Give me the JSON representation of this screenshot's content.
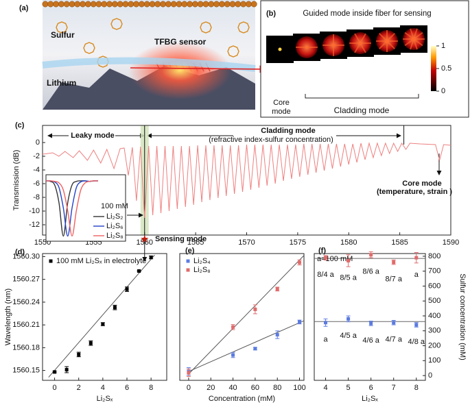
{
  "panel_a": {
    "label": "(a)",
    "texts": [
      "Sulfur",
      "TFBG sensor",
      "Lithium"
    ]
  },
  "panel_b": {
    "label": "(b)",
    "title": "Guided mode inside fiber for sensing",
    "colorbar_ticks": [
      1,
      0.5,
      0
    ],
    "core_label": [
      "Core",
      "mode"
    ],
    "cladding_label": "Cladding  mode"
  },
  "chart_data": [
    {
      "type": "line",
      "panel_label": "(c)",
      "ylabel": "Transmission (dB)",
      "xlim": [
        1550,
        1590
      ],
      "ylim": [
        -13.5,
        2.5
      ],
      "xticks": [
        1550,
        1555,
        1560,
        1565,
        1570,
        1575,
        1580,
        1585,
        1590
      ],
      "yticks": [
        0,
        -2,
        -4,
        -6,
        -8,
        -10,
        -12
      ],
      "highlight_band": [
        1559.6,
        1560.4
      ],
      "band_color": "#d5e4bd",
      "vlines": [
        1560,
        1585.4
      ],
      "annotations": [
        "Leaky mode",
        "Cladding mode",
        "(refractive index-sulfur concentration)",
        "Core mode",
        "(temperature, strain )",
        "Sensing mode"
      ],
      "series": [
        {
          "color": "#ee7f7f",
          "x": [
            1550,
            1551,
            1551.6,
            1552.2,
            1553,
            1553.6,
            1554.4,
            1555,
            1555.7,
            1556.3,
            1557,
            1557.6,
            1558.0,
            1558.4,
            1558.8,
            1559.2,
            1559.6,
            1560.0,
            1560.4,
            1560.8,
            1561.2,
            1561.6,
            1562.0,
            1562.4,
            1562.8,
            1563.2,
            1563.6,
            1564.0,
            1564.4,
            1564.8,
            1565.2,
            1565.6,
            1566.0,
            1566.4,
            1566.8,
            1567.2,
            1567.6,
            1568.0,
            1568.4,
            1568.8,
            1569.2,
            1569.6,
            1570.0,
            1570.4,
            1570.8,
            1571.2,
            1571.6,
            1572.0,
            1572.4,
            1572.8,
            1573.2,
            1573.6,
            1574.0,
            1574.4,
            1574.8,
            1575.2,
            1575.6,
            1576.0,
            1576.4,
            1576.8,
            1577.2,
            1577.6,
            1578.0,
            1578.4,
            1578.8,
            1579.2,
            1579.6,
            1580.0,
            1580.4,
            1580.8,
            1581.2,
            1581.6,
            1582.0,
            1582.4,
            1582.8,
            1583.2,
            1583.6,
            1584.0,
            1584.4,
            1584.8,
            1585.2,
            1585.6,
            1586.0,
            1587,
            1588.5,
            1588.9,
            1589.3,
            1590
          ],
          "values": [
            -1.7,
            -1.5,
            -2.0,
            -1.3,
            -2.2,
            -1.2,
            -2.6,
            -1.1,
            -3.0,
            -1.0,
            -3.8,
            -0.9,
            -0.8,
            -4.8,
            -0.7,
            -8.5,
            -0.6,
            -11.0,
            -0.5,
            -10.6,
            -0.5,
            -10.3,
            -0.5,
            -10.0,
            -0.5,
            -9.7,
            -0.5,
            -9.4,
            -0.5,
            -9.1,
            -0.4,
            -8.7,
            -0.4,
            -8.4,
            -0.4,
            -8.1,
            -0.4,
            -7.8,
            -0.4,
            -7.5,
            -0.4,
            -7.2,
            -0.3,
            -6.9,
            -0.3,
            -6.6,
            -0.3,
            -6.3,
            -0.3,
            -6.0,
            -0.3,
            -5.6,
            -0.3,
            -5.3,
            -0.3,
            -5.0,
            -0.2,
            -4.7,
            -0.2,
            -4.4,
            -0.2,
            -4.1,
            -0.2,
            -3.8,
            -0.2,
            -3.5,
            -0.2,
            -3.2,
            -0.2,
            -2.9,
            -0.1,
            -2.5,
            -0.1,
            -2.2,
            -0.1,
            -1.9,
            -0.1,
            -1.6,
            -0.1,
            -1.3,
            -0.1,
            -1.0,
            -0.1,
            -0.2,
            -0.3,
            -2.6,
            -0.3,
            -0.4
          ]
        }
      ],
      "inset": {
        "legend_title": "100 mM",
        "x": [
          0,
          1,
          2,
          3,
          4,
          5,
          6,
          7,
          8,
          9,
          10,
          11,
          12
        ],
        "xlim": [
          0,
          12
        ],
        "ylim": [
          -12,
          1
        ],
        "series": [
          {
            "name": "Li₂S₂",
            "color": "#333333",
            "values": [
              -0.2,
              -0.3,
              -1,
              -4.5,
              -11,
              -4.5,
              -1,
              -0.3,
              -0.2,
              -0.2,
              -0.3,
              -0.2,
              -0.2
            ]
          },
          {
            "name": "Li₂S₆",
            "color": "#2242c8",
            "values": [
              -0.2,
              -0.2,
              -0.4,
              -1.5,
              -5.5,
              -11,
              -5.5,
              -1.5,
              -0.4,
              -0.2,
              -0.3,
              -0.2,
              -0.2
            ]
          },
          {
            "name": "Li₂S₈",
            "color": "#f06060",
            "values": [
              -0.2,
              -0.2,
              -0.3,
              -0.6,
              -2,
              -6,
              -11,
              -6,
              -2,
              -0.6,
              -0.3,
              -0.2,
              -0.2
            ]
          }
        ]
      }
    },
    {
      "type": "scatter",
      "panel_label": "(d)",
      "xlabel": "Li₂Sₓ",
      "ylabel": "Wavelength (nm)",
      "xlim": [
        -1,
        9.3
      ],
      "ylim": [
        1560.137,
        1560.304
      ],
      "xticks": [
        0,
        2,
        4,
        6,
        8
      ],
      "yticks": [
        1560.15,
        1560.18,
        1560.21,
        1560.24,
        1560.27,
        {
          "value": 1560.3,
          "label": "1560.30"
        }
      ],
      "series": [
        {
          "name": "100 mM Li₂Sₓ in electrolyte",
          "color": "#000000",
          "x": [
            0,
            1,
            2,
            3,
            4,
            5,
            6,
            7,
            8
          ],
          "values": [
            1560.148,
            1560.151,
            1560.171,
            1560.186,
            1560.211,
            1560.233,
            1560.257,
            1560.281,
            1560.299
          ],
          "errors": [
            0.001,
            0.004,
            0.003,
            0.003,
            0.002,
            0.003,
            0.003,
            0.001,
            0.002
          ],
          "fit": {
            "x": [
              -0.5,
              8.3
            ],
            "values": [
              1560.141,
              1560.302
            ]
          }
        }
      ]
    },
    {
      "type": "scatter",
      "panel_label": "(e)",
      "xlabel": "Concentration (mM)",
      "xlim": [
        -8,
        104
      ],
      "ylim": [
        0,
        1
      ],
      "xticks": [
        0,
        20,
        40,
        60,
        80,
        100
      ],
      "series": [
        {
          "name": "Li₂S₄",
          "color": "#5b7be0",
          "x": [
            0,
            40,
            60,
            80,
            100
          ],
          "values": [
            0.07,
            0.2,
            0.25,
            0.36,
            0.46
          ],
          "errors": [
            0.03,
            0.02,
            0.01,
            0.03,
            0.015
          ],
          "fit": {
            "x": [
              0,
              104
            ],
            "values": [
              0.07,
              0.47
            ]
          }
        },
        {
          "name": "Li₂S₈",
          "color": "#e06b6b",
          "x": [
            0,
            40,
            60,
            80,
            100
          ],
          "values": [
            0.06,
            0.42,
            0.56,
            0.72,
            0.93
          ],
          "errors": [
            0.03,
            0.02,
            0.035,
            0.015,
            0.02
          ],
          "fit": {
            "x": [
              0,
              104
            ],
            "values": [
              0.05,
              0.985
            ]
          }
        }
      ]
    },
    {
      "type": "scatter",
      "panel_label": "(f)",
      "xlabel": "Li₂Sₓ",
      "y2label": "Sulfur concentration (mM)",
      "annotation": "a=100 mM",
      "xlim": [
        3.5,
        8.4
      ],
      "y2lim": [
        -32,
        818
      ],
      "xticks": [
        4,
        5,
        6,
        7,
        8
      ],
      "y2ticks": [
        0,
        100,
        200,
        300,
        400,
        500,
        600,
        700,
        800
      ],
      "hlines": [
        785,
        362
      ],
      "series": [
        {
          "color": "#e06b6b",
          "axis": "y2",
          "x": [
            4,
            5,
            6,
            7,
            8
          ],
          "values": [
            790,
            770,
            810,
            760,
            790
          ],
          "errors": [
            15,
            40,
            20,
            15,
            35
          ],
          "point_labels": [
            "8/4 a",
            "8/5 a",
            "8/6 a",
            "8/7 a",
            "a"
          ]
        },
        {
          "color": "#5b7be0",
          "axis": "y2",
          "x": [
            4,
            5,
            6,
            7,
            8
          ],
          "values": [
            355,
            380,
            350,
            355,
            340
          ],
          "errors": [
            25,
            20,
            15,
            15,
            15
          ],
          "point_labels": [
            "a",
            "4/5 a",
            "4/6 a",
            "4/7 a",
            "4/8 a"
          ]
        }
      ]
    }
  ]
}
